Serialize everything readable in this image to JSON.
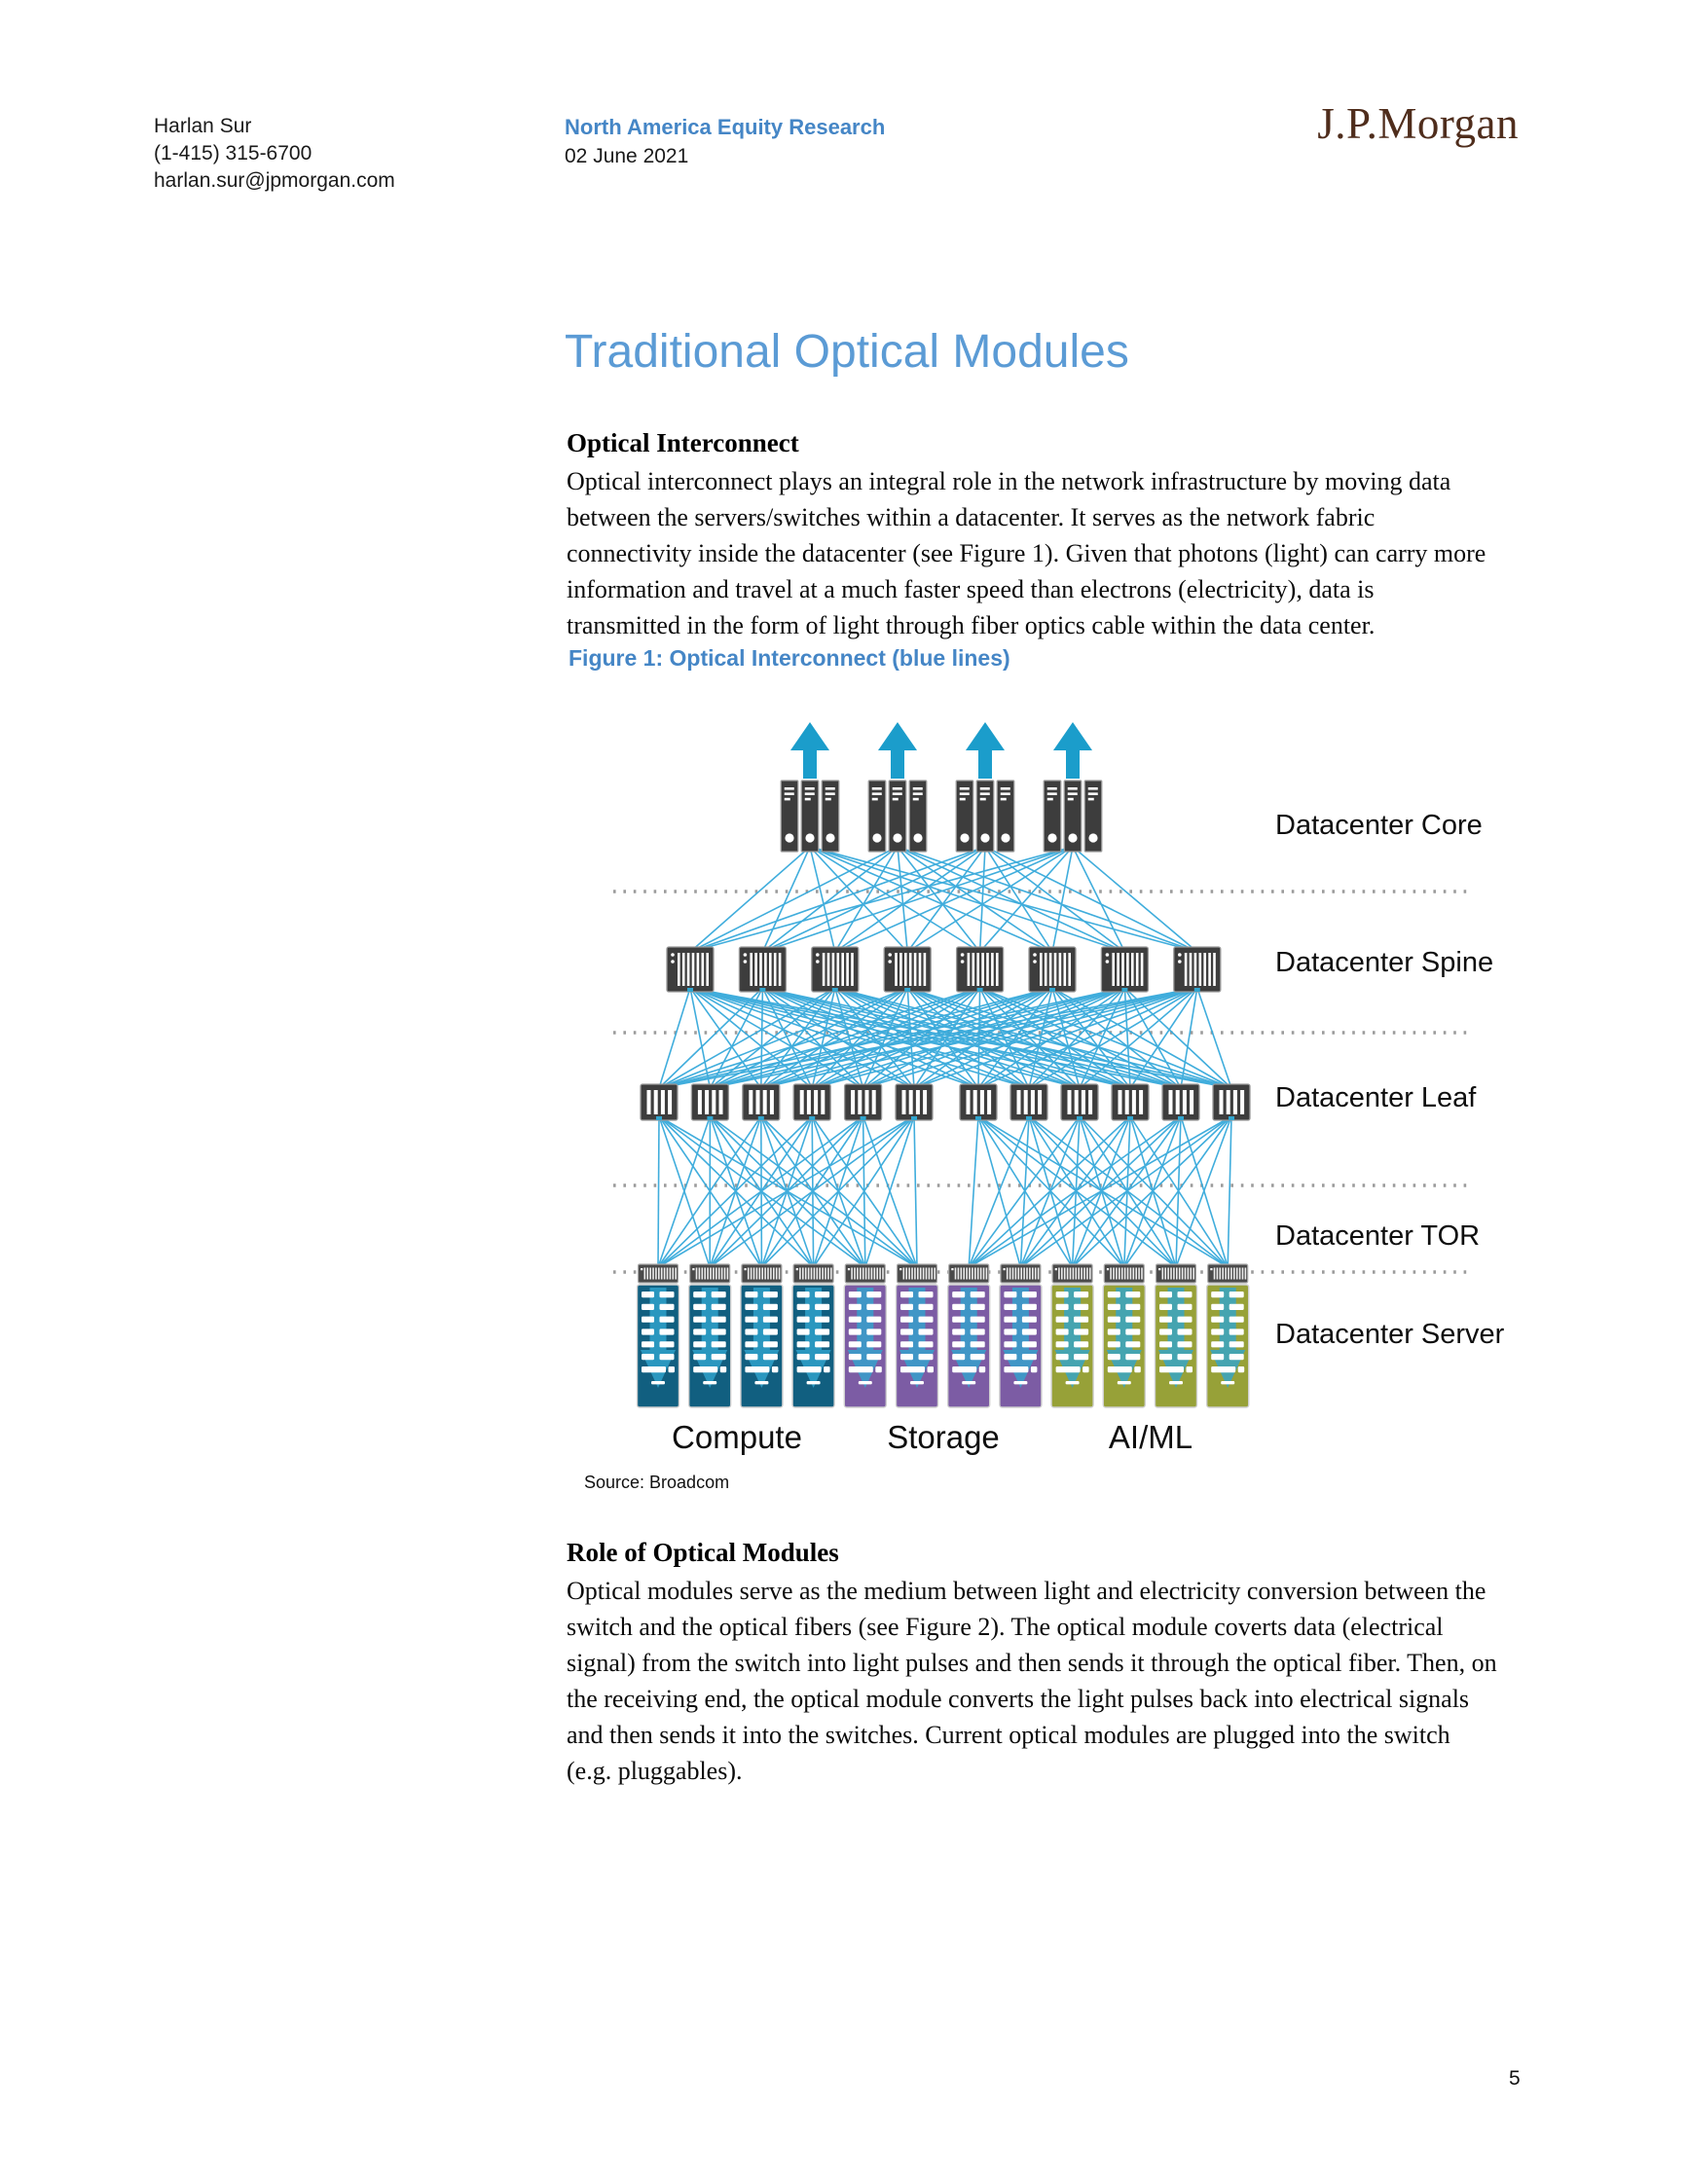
{
  "header": {
    "author": "Harlan Sur",
    "phone": "(1-415) 315-6700",
    "email": "harlan.sur@jpmorgan.com",
    "division": "North America Equity Research",
    "date": "02 June 2021",
    "logo": "J.P.Morgan"
  },
  "title": "Traditional Optical Modules",
  "sections": [
    {
      "heading": "Optical Interconnect",
      "body": "Optical interconnect plays an integral role in the network infrastructure by moving data between the servers/switches within a datacenter. It serves as the network fabric connectivity inside the datacenter (see Figure 1). Given that photons (light) can carry more information and travel at a much faster speed than electrons (electricity), data is transmitted in the form of light through fiber optics cable within the data center."
    },
    {
      "heading": "Role of Optical Modules",
      "body": "Optical modules serve as the medium between light and electricity conversion between the switch and the optical fibers (see Figure 2). The optical module coverts data (electrical signal) from the switch into light pulses and then sends it through the optical fiber. Then, on the receiving end, the optical module converts the light pulses back into electrical signals and then sends it into the switches. Current optical modules are plugged into the switch (e.g. pluggables)."
    }
  ],
  "figure": {
    "caption": "Figure 1: Optical Interconnect (blue lines)",
    "source": "Source: Broadcom",
    "layers": [
      {
        "label": "Datacenter Core"
      },
      {
        "label": "Datacenter Spine"
      },
      {
        "label": "Datacenter Leaf"
      },
      {
        "label": "Datacenter TOR"
      },
      {
        "label": "Datacenter Server"
      }
    ],
    "server_groups": [
      {
        "label": "Compute",
        "color": "#115F80"
      },
      {
        "label": "Storage",
        "color": "#7C5CA4"
      },
      {
        "label": "AI/ML",
        "color": "#97A138"
      }
    ],
    "counts": {
      "core_groups": 4,
      "towers_per_core_group": 3,
      "spine_switches": 8,
      "leaf_switches": 12,
      "servers": 12
    },
    "colors": {
      "link_line": "#36A9DB",
      "arrow": "#1B9DCB",
      "server_arrow": "#31A5CE",
      "switch_body": "#3D3D3D",
      "switch_border": "#9A9A9A",
      "tor_body": "#4A4A4A",
      "tor_stripe": "#ECECEC",
      "dotted_line": "#9B9B9B"
    }
  },
  "page_number": "5",
  "accent": {
    "header_blue": "#4586C6",
    "title_blue": "#5B9BD5",
    "logo_brown": "#4F2D1C"
  }
}
